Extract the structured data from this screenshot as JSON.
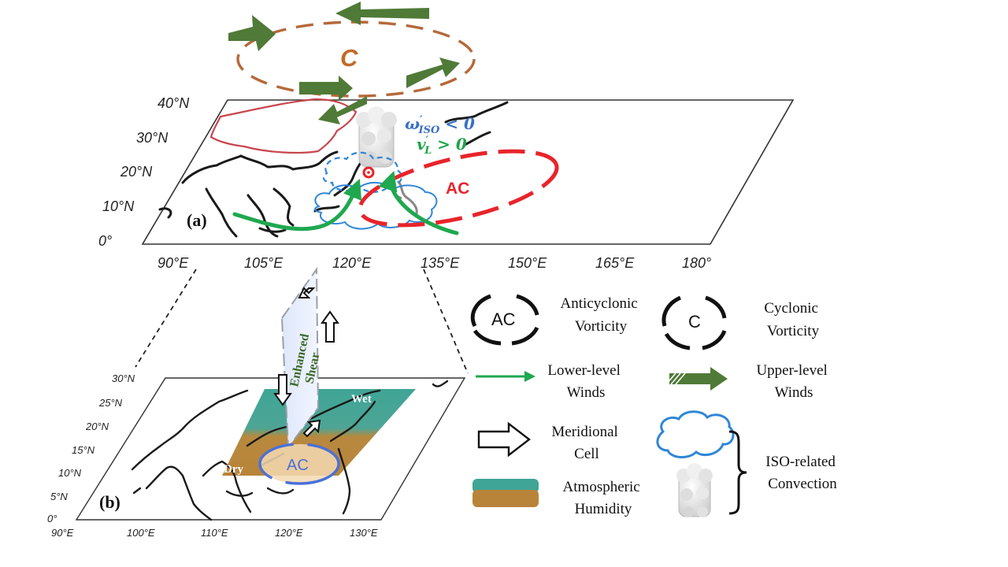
{
  "panel_a": {
    "label": "(a)",
    "lat_ticks": [
      "40°N",
      "30°N",
      "20°N",
      "10°N",
      "0°"
    ],
    "lon_ticks": [
      "90°E",
      "105°E",
      "120°E",
      "135°E",
      "150°E",
      "165°E",
      "180°"
    ],
    "upper_cyclone_label": "C",
    "anticyclone_label": "AC",
    "omega_base": "ω",
    "omega_sup": "′",
    "omega_sub": "ISO",
    "omega_rel": " < 0",
    "v_base": "v",
    "v_sup": "′",
    "v_sub": "L",
    "v_rel": " > 0"
  },
  "panel_b": {
    "label": "(b)",
    "lat_ticks": [
      "30°N",
      "25°N",
      "20°N",
      "15°N",
      "10°N",
      "5°N",
      "0°"
    ],
    "lon_ticks": [
      "90°E",
      "100°E",
      "110°E",
      "120°E",
      "130°E"
    ],
    "wet_label": "Wet",
    "dry_label": "Dry",
    "anticyclone_label": "AC",
    "shear_line1": "Enhanced",
    "shear_line2": "Shear"
  },
  "legend": {
    "ac_symbol": "AC",
    "ac_line1": "Anticyclonic",
    "ac_line2": "Vorticity",
    "c_symbol": "C",
    "c_line1": "Cyclonic",
    "c_line2": "Vorticity",
    "lower_line1": "Lower-level",
    "lower_line2": "Winds",
    "upper_line1": "Upper-level",
    "upper_line2": "Winds",
    "merid_line1": "Meridional",
    "merid_line2": "Cell",
    "iso_line1": "ISO-related",
    "iso_line2": "Convection",
    "hum_line1": "Atmospheric",
    "hum_line2": "Humidity"
  },
  "colors": {
    "upper_wind": "#4f7a37",
    "lower_wind": "#1fa84f",
    "anticyclone": "#e8242b",
    "cyclone_ring": "#b5693a",
    "convection": "#2f86d6",
    "china_border": "#c8474e",
    "omega_text": "#3a6fc4",
    "v_text": "#1ea44a",
    "wet": "#4fb8a8",
    "dry": "#d9a24a",
    "ac_b": "#4a70d9"
  }
}
